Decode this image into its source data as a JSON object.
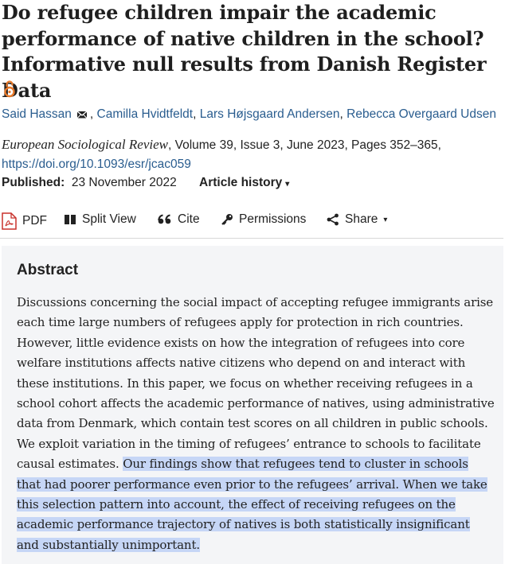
{
  "article": {
    "title": "Do refugee children impair the academic performance of native children in the school? Informative null results from Danish Register Data",
    "open_access_icon": "open-access-icon"
  },
  "authors": [
    {
      "name": "Said Hassan",
      "has_email": true
    },
    {
      "name": "Camilla Hvidtfeldt"
    },
    {
      "name": "Lars Højsgaard Andersen"
    },
    {
      "name": "Rebecca Overgaard Udsen"
    }
  ],
  "citation": {
    "journal": "European Sociological Review",
    "details": ", Volume 39, Issue 3, June 2023, Pages 352–365,",
    "doi": "https://doi.org/10.1093/esr/jcac059"
  },
  "published": {
    "label": "Published:",
    "date": "23 November 2022",
    "history_label": "Article history",
    "caret": "▾"
  },
  "toolbar": {
    "pdf": "PDF",
    "split_view": "Split View",
    "cite": "Cite",
    "permissions": "Permissions",
    "share": "Share",
    "caret": "▾"
  },
  "abstract": {
    "heading": "Abstract",
    "text_plain": "Discussions concerning the social impact of accepting refugee immigrants arise each time large numbers of refugees apply for protection in rich countries. However, little evidence exists on how the integration of refugees into core welfare institutions affects native citizens who depend on and interact with these institutions. In this paper, we focus on whether receiving refugees in a school cohort affects the academic performance of natives, using administrative data from Denmark, which contain test scores on all children in public schools. We exploit variation in the timing of refugees’ entrance to schools to facilitate causal estimates. ",
    "text_highlighted": "Our findings show that refugees tend to cluster in schools that had poorer performance even prior to the refugees’ arrival. When we take this selection pattern into account, the effect of receiving refugees on the academic performance trajectory of natives is both statistically insignificant and substantially unimportant."
  },
  "colors": {
    "link": "#2a5d8f",
    "highlight": "#c6d6f6",
    "abstract_bg": "#f4f5f7",
    "accent_orange": "#e8792a",
    "pdf_red": "#c8312b"
  }
}
